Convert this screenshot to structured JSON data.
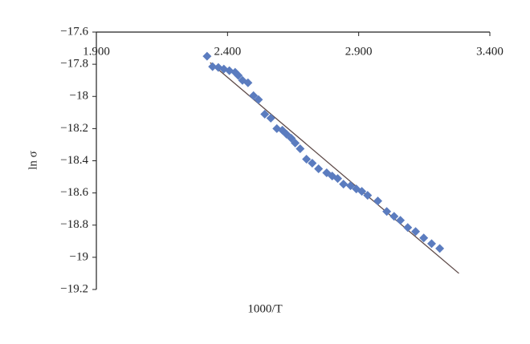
{
  "chart_data": {
    "type": "scatter",
    "x_label": "1000/T",
    "y_label": "ln σ",
    "xlim": [
      1.9,
      3.4
    ],
    "ylim": [
      -19.2,
      -17.6
    ],
    "xticks": [
      {
        "value": 1.9,
        "label": "1.900"
      },
      {
        "value": 2.4,
        "label": "2.400"
      },
      {
        "value": 2.9,
        "label": "2.900"
      },
      {
        "value": 3.4,
        "label": "3.400"
      }
    ],
    "yticks": [
      {
        "value": -17.6,
        "label": "−17.6"
      },
      {
        "value": -17.8,
        "label": "−17.8"
      },
      {
        "value": -18,
        "label": "−18"
      },
      {
        "value": -18.2,
        "label": "−18.2"
      },
      {
        "value": -18.4,
        "label": "−18.4"
      },
      {
        "value": -18.6,
        "label": "−18.6"
      },
      {
        "value": -18.8,
        "label": "−18.8"
      },
      {
        "value": -19,
        "label": "−19"
      },
      {
        "value": -19.2,
        "label": "−19.2"
      }
    ],
    "series": [
      {
        "color": "#5b7cbf",
        "x": [
          2.322,
          2.343,
          2.365,
          2.386,
          2.407,
          2.429,
          2.441,
          2.457,
          2.478,
          2.499,
          2.518,
          2.542,
          2.565,
          2.588,
          2.609,
          2.625,
          2.643,
          2.658,
          2.677,
          2.701,
          2.723,
          2.747,
          2.778,
          2.799,
          2.82,
          2.842,
          2.869,
          2.891,
          2.912,
          2.934,
          2.973,
          3.007,
          3.035,
          3.059,
          3.087,
          3.117,
          3.148,
          3.178,
          3.209
        ],
        "values": [
          -17.75,
          -17.815,
          -17.82,
          -17.83,
          -17.84,
          -17.85,
          -17.87,
          -17.9,
          -17.915,
          -17.995,
          -18.02,
          -18.11,
          -18.135,
          -18.2,
          -18.21,
          -18.235,
          -18.26,
          -18.29,
          -18.325,
          -18.39,
          -18.415,
          -18.45,
          -18.475,
          -18.495,
          -18.51,
          -18.545,
          -18.555,
          -18.575,
          -18.59,
          -18.615,
          -18.65,
          -18.715,
          -18.745,
          -18.77,
          -18.815,
          -18.84,
          -18.88,
          -18.915,
          -18.945
        ]
      },
      {
        "color": "#5e4a48",
        "x": [
          2.334,
          3.282
        ],
        "values": [
          -17.79,
          -19.1
        ]
      }
    ]
  }
}
